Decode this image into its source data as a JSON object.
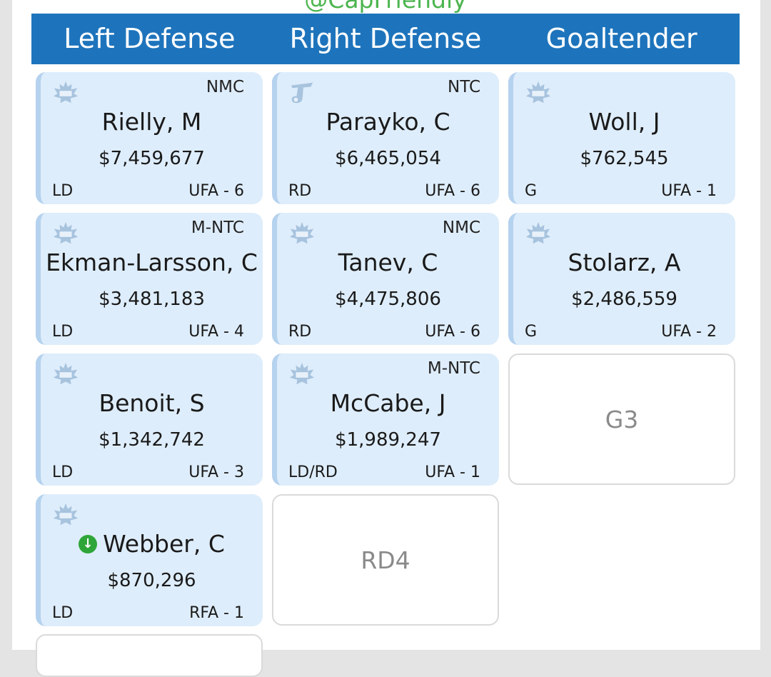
{
  "watermark": "@CapFriendly",
  "columns": [
    "Left Defense",
    "Right Defense",
    "Goaltender"
  ],
  "cards": {
    "rielly": {
      "clause": "NMC",
      "name": "Rielly, M",
      "salary": "$7,459,677",
      "pos": "LD",
      "status": "UFA - 6"
    },
    "parayko": {
      "clause": "NTC",
      "name": "Parayko, C",
      "salary": "$6,465,054",
      "pos": "RD",
      "status": "UFA - 6"
    },
    "woll": {
      "clause": "",
      "name": "Woll, J",
      "salary": "$762,545",
      "pos": "G",
      "status": "UFA - 1"
    },
    "ekman": {
      "clause": "M-NTC",
      "name": "Ekman-Larsson, C",
      "salary": "$3,481,183",
      "pos": "LD",
      "status": "UFA - 4"
    },
    "tanev": {
      "clause": "NMC",
      "name": "Tanev, C",
      "salary": "$4,475,806",
      "pos": "RD",
      "status": "UFA - 6"
    },
    "stolarz": {
      "clause": "",
      "name": "Stolarz, A",
      "salary": "$2,486,559",
      "pos": "G",
      "status": "UFA - 2"
    },
    "benoit": {
      "clause": "",
      "name": "Benoit, S",
      "salary": "$1,342,742",
      "pos": "LD",
      "status": "UFA - 3"
    },
    "mccabe": {
      "clause": "M-NTC",
      "name": "McCabe, J",
      "salary": "$1,989,247",
      "pos": "LD/RD",
      "status": "UFA - 1"
    },
    "webber": {
      "clause": "",
      "name": "Webber, C",
      "salary": "$870,296",
      "pos": "LD",
      "status": "RFA - 1"
    }
  },
  "empty_slots": {
    "g3": "G3",
    "rd4": "RD4"
  },
  "colors": {
    "header": "#1e74bc",
    "card": "#deedfb",
    "card_border": "#b5d2ee",
    "watermark": "#4cb54f",
    "down_badge": "#2ea538"
  },
  "icons": {
    "leafs": "maple-leafs-logo",
    "blues": "blues-logo",
    "down": "down-arrow-badge"
  }
}
